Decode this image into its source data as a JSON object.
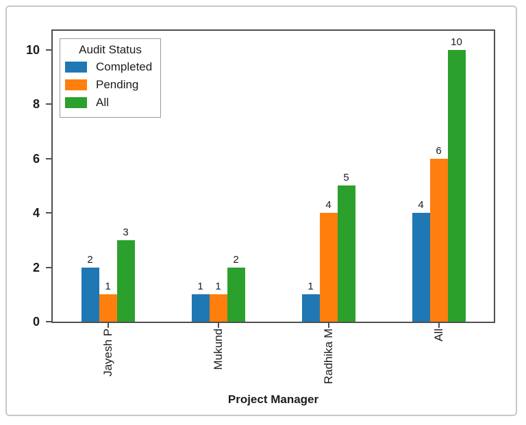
{
  "page": {
    "background": "#ffffff",
    "outer_border_color": "#c7c7c7",
    "axis_color": "#4f4f4f",
    "text_color": "#1c1c1c"
  },
  "chart_data": {
    "type": "bar",
    "title": "",
    "xlabel": "Project Manager",
    "ylabel": "",
    "categories": [
      "Jayesh P",
      "Mukund",
      "Radhika M",
      "All"
    ],
    "series": [
      {
        "name": "Completed",
        "color": "#1f77b4",
        "values": [
          2,
          1,
          1,
          4
        ]
      },
      {
        "name": "Pending",
        "color": "#ff7f0e",
        "values": [
          1,
          1,
          4,
          6
        ]
      },
      {
        "name": "All",
        "color": "#2ca02c",
        "values": [
          3,
          2,
          5,
          10
        ]
      }
    ],
    "ylim": [
      0,
      10.7
    ],
    "yticks": [
      0,
      2,
      4,
      6,
      8,
      10
    ],
    "bar_value_labels": [
      [
        "2",
        "1",
        "3"
      ],
      [
        "1",
        "1",
        "2"
      ],
      [
        "1",
        "4",
        "5"
      ],
      [
        "4",
        "6",
        "10"
      ]
    ],
    "grid": false,
    "legend": {
      "title": "Audit Status",
      "position": "upper-left"
    }
  }
}
